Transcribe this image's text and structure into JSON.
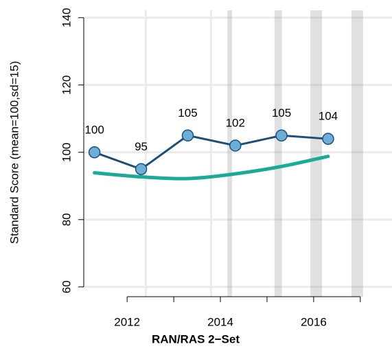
{
  "chart_data": {
    "type": "line",
    "x_label": "RAN/RAS 2−Set",
    "y_label": "Standard Score (mean=100,sd=15)",
    "xlim": [
      2011.07,
      2017.68
    ],
    "ylim": [
      57.1,
      142.2
    ],
    "xticks": [
      2012,
      2014,
      2016
    ],
    "xminor_ticks": [
      2013,
      2015,
      2017
    ],
    "yticks": [
      60,
      80,
      100,
      120,
      140
    ],
    "grid": true,
    "x_grid_lines": [
      2012.4,
      2013.8
    ],
    "shaded_periods": [
      [
        2014.15,
        2014.25
      ],
      [
        2015.16,
        2015.32
      ],
      [
        2015.93,
        2016.18
      ],
      [
        2016.81,
        2017.06
      ]
    ],
    "x": [
      2011.3,
      2012.3,
      2013.3,
      2014.32,
      2015.31,
      2016.31
    ],
    "series": [
      {
        "color": "#1f4e79",
        "marker_color": "#6baed6",
        "values": [
          100,
          95,
          105,
          102,
          105,
          104
        ],
        "labeled": true
      },
      {
        "color": "#1aab96",
        "values": [
          93.9,
          92.7,
          92.2,
          93.6,
          95.8,
          98.8
        ],
        "smooth": true
      }
    ]
  }
}
